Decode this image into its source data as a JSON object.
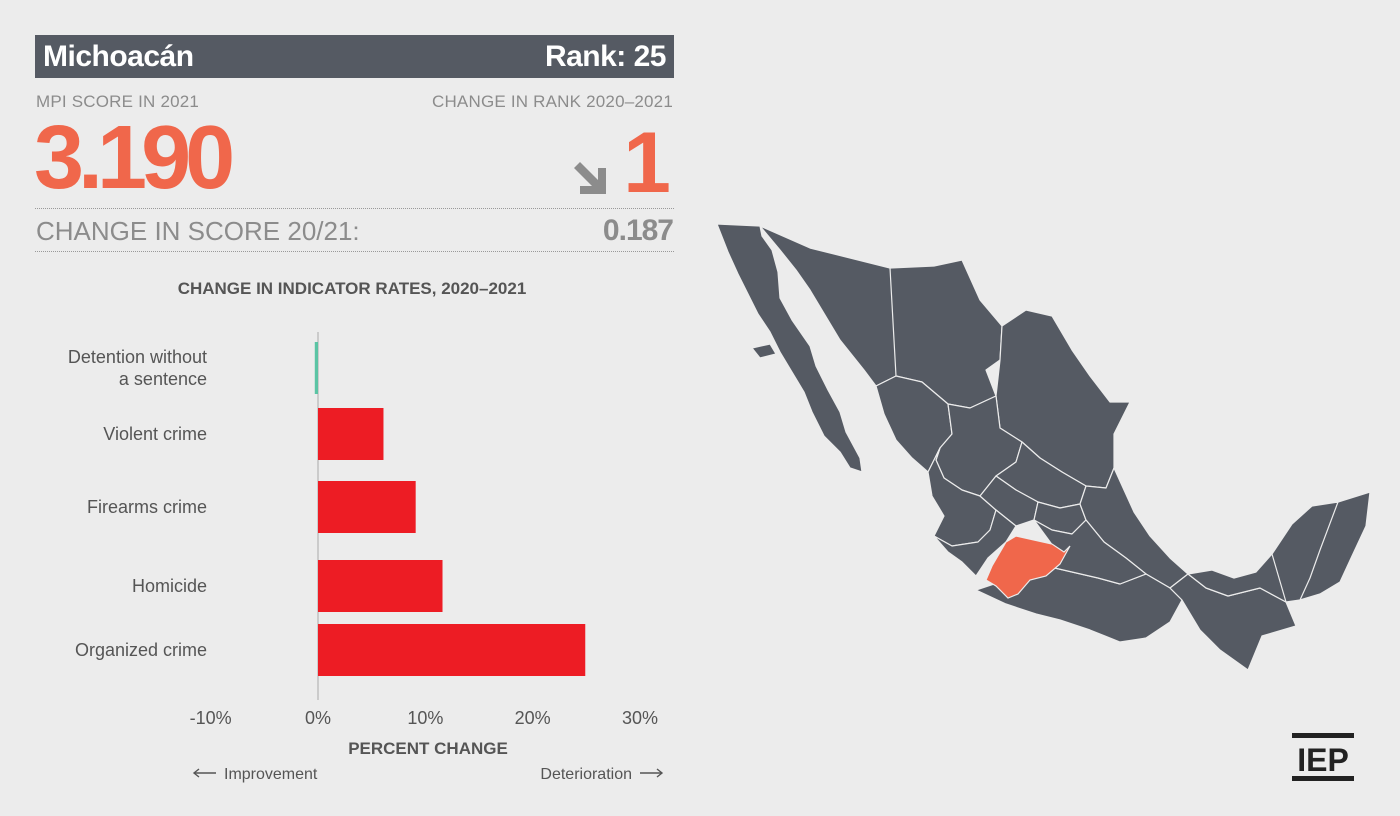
{
  "header": {
    "state": "Michoacán",
    "rank": "Rank: 25"
  },
  "score": {
    "label": "MPI SCORE IN 2021",
    "value": "3.190"
  },
  "rank_change": {
    "label": "CHANGE IN RANK 2020–2021",
    "value": "1",
    "direction": "down",
    "arrow_icon": "arrow-down-right-icon"
  },
  "score_change": {
    "label": "CHANGE IN SCORE 20/21:",
    "value": "0.187"
  },
  "colors": {
    "title_bg": "#555a63",
    "accent": "#f0674b",
    "deterioration": "#ed1c24",
    "improvement": "#5bc4a4",
    "map_fill": "#555a63",
    "map_highlight": "#f0674b"
  },
  "logo": "IEP",
  "chart_data": {
    "type": "bar",
    "orientation": "horizontal",
    "title": "CHANGE IN INDICATOR RATES, 2020–2021",
    "xlabel": "PERCENT CHANGE",
    "left_note": "Improvement",
    "right_note": "Deterioration",
    "categories": [
      "Detention without a sentence",
      "Violent crime",
      "Firearms crime",
      "Homicide",
      "Organized crime"
    ],
    "category_lines": [
      [
        "Detention without",
        "a sentence"
      ],
      [
        "Violent crime"
      ],
      [
        "Firearms crime"
      ],
      [
        "Homicide"
      ],
      [
        "Organized crime"
      ]
    ],
    "values": [
      -0.3,
      6.1,
      9.1,
      11.6,
      24.9
    ],
    "xlim": [
      -10,
      30
    ],
    "ticks": [
      "-10%",
      "0%",
      "10%",
      "20%",
      "30%"
    ],
    "tick_values": [
      -10,
      0,
      10,
      20,
      30
    ]
  }
}
